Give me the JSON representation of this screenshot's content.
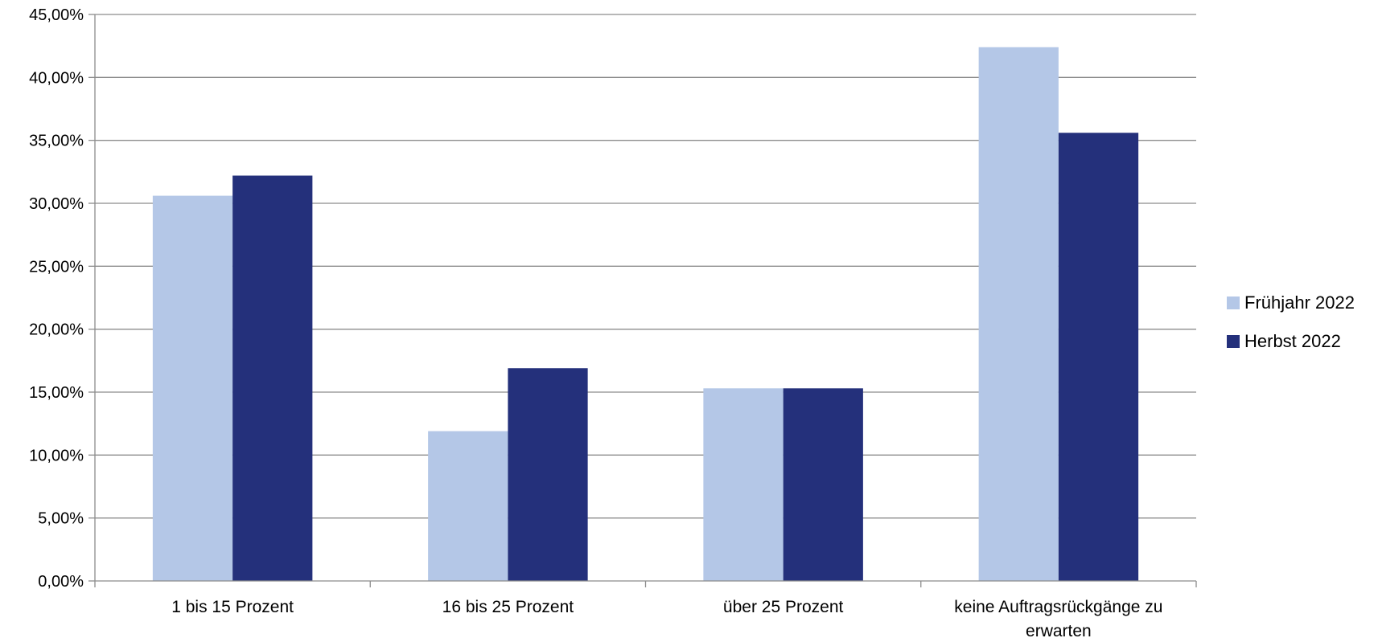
{
  "chart_data": {
    "type": "bar",
    "categories": [
      "1 bis 15 Prozent",
      "16 bis 25 Prozent",
      "über 25 Prozent",
      "keine Auftragsrückgänge zu erwarten"
    ],
    "series": [
      {
        "name": "Frühjahr 2022",
        "color": "#b4c7e7",
        "values": [
          30.6,
          11.9,
          15.3,
          42.4
        ]
      },
      {
        "name": "Herbst 2022",
        "color": "#24307b",
        "values": [
          32.2,
          16.9,
          15.3,
          35.6
        ]
      }
    ],
    "y_ticks": [
      "0,00%",
      "5,00%",
      "10,00%",
      "15,00%",
      "20,00%",
      "25,00%",
      "30,00%",
      "35,00%",
      "40,00%",
      "45,00%"
    ],
    "ylim": [
      0,
      45
    ],
    "y_unit": "percent",
    "grid": true,
    "legend_position": "right",
    "title": "",
    "xlabel": "",
    "ylabel": ""
  }
}
